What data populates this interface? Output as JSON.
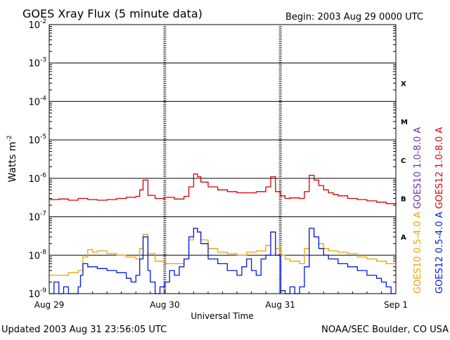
{
  "chart_data": {
    "type": "line",
    "title": "GOES Xray Flux (5 minute data)",
    "begin": "Begin:  2003 Aug 29 0000 UTC",
    "xlabel": "Universal Time",
    "ylabel_main": "Watts m",
    "ylabel_exp": "-2",
    "x_ticks": [
      "Aug 29",
      "Aug 30",
      "Aug 31",
      "Sep 1"
    ],
    "x_range_hours": [
      0,
      72
    ],
    "y_scale": "log",
    "y_range": [
      1e-09,
      0.01
    ],
    "y_ticks": [
      {
        "base": "10",
        "exp": "-2",
        "value": 0.01
      },
      {
        "base": "10",
        "exp": "-3",
        "value": 0.001
      },
      {
        "base": "10",
        "exp": "-4",
        "value": 0.0001
      },
      {
        "base": "10",
        "exp": "-5",
        "value": 1e-05
      },
      {
        "base": "10",
        "exp": "-6",
        "value": 1e-06
      },
      {
        "base": "10",
        "exp": "-7",
        "value": 1e-07
      },
      {
        "base": "10",
        "exp": "-8",
        "value": 1e-08
      },
      {
        "base": "10",
        "exp": "-9",
        "value": 1e-09
      }
    ],
    "flare_classes": [
      {
        "label": "X",
        "value": 0.0003
      },
      {
        "label": "M",
        "value": 3e-05
      },
      {
        "label": "C",
        "value": 3e-06
      },
      {
        "label": "B",
        "value": 3e-07
      },
      {
        "label": "A",
        "value": 3e-08
      }
    ],
    "legend_right_1": [
      {
        "text": "GOES10 1.0-8.0 A",
        "color": "#6a2fb0"
      },
      {
        "text": "GOES10 0.5-4.0 A",
        "color": "#f0a000"
      }
    ],
    "legend_right_2": [
      {
        "text": "GOES12 1.0-8.0 A",
        "color": "#e00000"
      },
      {
        "text": "GOES12 0.5-4.0 A",
        "color": "#0018e0"
      }
    ],
    "series": [
      {
        "name": "GOES12 1.0-8.0 A",
        "color": "#d40000",
        "x": [
          0,
          2,
          4,
          6,
          8,
          10,
          12,
          14,
          16,
          18,
          18.8,
          19.5,
          20.5,
          22,
          24,
          26,
          28,
          29,
          30,
          30.8,
          31.5,
          33,
          35,
          37,
          39,
          41,
          43,
          45,
          46,
          47,
          48,
          49,
          50,
          52,
          53,
          54,
          55,
          56,
          57,
          58,
          59,
          60,
          62,
          64,
          66,
          68,
          70,
          72
        ],
        "y": [
          2.8e-07,
          2.9e-07,
          2.7e-07,
          3e-07,
          2.8e-07,
          2.7e-07,
          2.8e-07,
          3e-07,
          3.2e-07,
          3.4e-07,
          5e-07,
          9e-07,
          3.6e-07,
          3e-07,
          3.2e-07,
          2.9e-07,
          3.4e-07,
          6e-07,
          1.3e-06,
          1.1e-06,
          8e-07,
          6e-07,
          5e-07,
          4.5e-07,
          4.2e-07,
          4.2e-07,
          4.5e-07,
          6e-07,
          1.1e-06,
          4.5e-07,
          3.5e-07,
          3e-07,
          3.1e-07,
          3e-07,
          4.5e-07,
          1.2e-06,
          9e-07,
          6.5e-07,
          5e-07,
          4.2e-07,
          3.8e-07,
          3.5e-07,
          3e-07,
          2.8e-07,
          2.6e-07,
          2.4e-07,
          2.2e-07,
          2e-07
        ]
      },
      {
        "name": "GOES10 0.5-4.0 A",
        "color": "#f0a000",
        "x": [
          0,
          2,
          4,
          6,
          7,
          8,
          9,
          10,
          12,
          14,
          16,
          18,
          18.8,
          19.5,
          20.5,
          22,
          24,
          26,
          28,
          29,
          30,
          30.8,
          31.5,
          33,
          35,
          37,
          39,
          41,
          43,
          45,
          46,
          47,
          48,
          49,
          50,
          52,
          53,
          54,
          55,
          56,
          57,
          58,
          60,
          62,
          64,
          66,
          68,
          70,
          72
        ],
        "y": [
          3e-09,
          3e-09,
          3.5e-09,
          4e-09,
          9e-09,
          1.4e-08,
          1.2e-08,
          1.3e-08,
          1.1e-08,
          1e-08,
          9e-09,
          8e-09,
          1.5e-08,
          3.5e-08,
          1.1e-08,
          7e-09,
          6e-09,
          6e-09,
          8e-09,
          2.5e-08,
          5e-08,
          4e-08,
          2.5e-08,
          1.5e-08,
          1.2e-08,
          1.1e-08,
          1e-08,
          1.2e-08,
          1.3e-08,
          1.8e-08,
          4e-08,
          1.5e-08,
          1e-08,
          8e-09,
          7e-09,
          6e-09,
          1.5e-08,
          5e-08,
          3e-08,
          2e-08,
          1.5e-08,
          1.3e-08,
          1.2e-08,
          1.1e-08,
          9e-09,
          8e-09,
          7e-09,
          6e-09,
          6e-09
        ]
      },
      {
        "name": "GOES12 0.5-4.0 A",
        "color": "#0018e0",
        "x": [
          0,
          1,
          2,
          3,
          4,
          5,
          6,
          6.5,
          7,
          8,
          10,
          12,
          14,
          16,
          17,
          18,
          18.8,
          19.5,
          20.5,
          21,
          22,
          23,
          24,
          25,
          26,
          27,
          28,
          29,
          30,
          30.8,
          31.5,
          33,
          35,
          37,
          39,
          40,
          41,
          42,
          43,
          44,
          45,
          46,
          47,
          48,
          49,
          50,
          51,
          52,
          53,
          54,
          55,
          56,
          57,
          58,
          60,
          62,
          64,
          66,
          68,
          69,
          70,
          71,
          72
        ],
        "y": [
          1e-09,
          2e-09,
          1e-09,
          1.5e-09,
          1e-09,
          1e-09,
          1.5e-09,
          3e-09,
          6e-09,
          5e-09,
          4.5e-09,
          4e-09,
          3.5e-09,
          2.5e-09,
          2e-09,
          3e-09,
          8e-09,
          3e-08,
          4e-09,
          2e-09,
          1e-09,
          1.5e-09,
          2e-09,
          4e-09,
          3e-09,
          5e-09,
          8e-09,
          3e-08,
          5e-08,
          4e-08,
          2e-08,
          8e-09,
          6e-09,
          4e-09,
          3e-09,
          5e-09,
          8e-09,
          4e-09,
          3e-09,
          8e-09,
          1e-08,
          4e-08,
          1e-08,
          1.2e-09,
          1e-09,
          1.5e-09,
          1e-09,
          1.5e-09,
          5e-09,
          5e-08,
          3e-08,
          1.5e-08,
          1e-08,
          8e-09,
          6e-09,
          5e-09,
          4e-09,
          3e-09,
          2.5e-09,
          2e-09,
          1.5e-09,
          1e-09,
          1e-09
        ]
      }
    ]
  },
  "footer": {
    "updated": "Updated 2003 Aug 31 23:56:05 UTC",
    "credit": "NOAA/SEC Boulder, CO USA"
  }
}
